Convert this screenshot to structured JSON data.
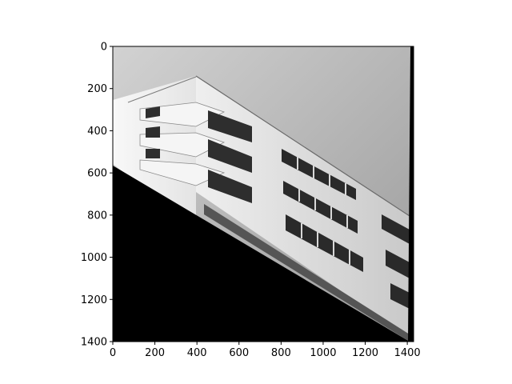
{
  "chart_data": {
    "type": "image",
    "title": "",
    "xlabel": "",
    "ylabel": "",
    "xlim": [
      0,
      1430
    ],
    "ylim": [
      1400,
      0
    ],
    "x_ticks": [
      0,
      200,
      400,
      600,
      800,
      1000,
      1200,
      1400
    ],
    "y_ticks": [
      0,
      200,
      400,
      600,
      800,
      1000,
      1200,
      1400
    ],
    "grid": false,
    "colormap": "grayscale",
    "image_content": "rotated grayscale photo of a modern apartment building with balconies; black fill outside rotated image"
  }
}
